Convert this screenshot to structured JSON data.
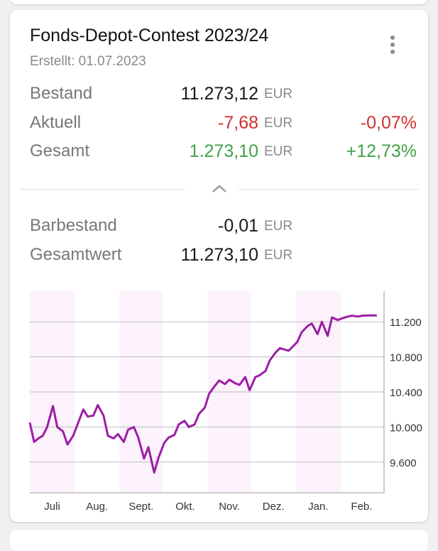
{
  "card": {
    "title": "Fonds-Depot-Contest 2023/24",
    "created": "Erstellt: 01.07.2023",
    "menu_icon": "more-vert-icon",
    "collapse_icon": "chevron-up-icon"
  },
  "summary": {
    "rows": [
      {
        "label": "Bestand",
        "value": "11.273,12",
        "currency": "EUR",
        "percent": ""
      },
      {
        "label": "Aktuell",
        "value": "-7,68",
        "currency": "EUR",
        "percent": "-0,07%"
      },
      {
        "label": "Gesamt",
        "value": "1.273,10",
        "currency": "EUR",
        "percent": "+12,73%"
      }
    ]
  },
  "cash": {
    "rows": [
      {
        "label": "Barbestand",
        "value": "-0,01",
        "currency": "EUR"
      },
      {
        "label": "Gesamtwert",
        "value": "11.273,10",
        "currency": "EUR"
      }
    ]
  },
  "colors": {
    "negative": "#d32f2f",
    "positive": "#43a047",
    "line": "#9c1ea4",
    "band": "#fbf2fb"
  },
  "chart_data": {
    "type": "line",
    "title": "",
    "xlabel": "",
    "ylabel": "",
    "x_ticks": [
      "Juli",
      "Aug.",
      "Sept.",
      "Okt.",
      "Nov.",
      "Dez.",
      "Jan.",
      "Feb."
    ],
    "y_ticks": [
      9600,
      10000,
      10400,
      10800,
      11200
    ],
    "y_tick_labels": [
      "9.600",
      "10.000",
      "10.400",
      "10.800",
      "11.200"
    ],
    "ylim": [
      9250,
      11550
    ],
    "grid": true,
    "y_axis_position": "right",
    "shaded_months": [
      "Juli",
      "Sept.",
      "Nov.",
      "Jan."
    ],
    "series": [
      {
        "x": [
          "2023-07-01",
          "2023-07-04",
          "2023-07-07",
          "2023-07-10",
          "2023-07-13",
          "2023-07-17",
          "2023-07-20",
          "2023-07-24",
          "2023-07-27",
          "2023-07-31",
          "2023-08-03",
          "2023-08-07",
          "2023-08-10",
          "2023-08-14",
          "2023-08-17",
          "2023-08-21",
          "2023-08-24",
          "2023-08-28",
          "2023-08-31",
          "2023-09-04",
          "2023-09-07",
          "2023-09-11",
          "2023-09-14",
          "2023-09-18",
          "2023-09-21",
          "2023-09-25",
          "2023-09-28",
          "2023-10-02",
          "2023-10-05",
          "2023-10-09",
          "2023-10-12",
          "2023-10-16",
          "2023-10-19",
          "2023-10-23",
          "2023-10-26",
          "2023-10-30",
          "2023-11-02",
          "2023-11-06",
          "2023-11-09",
          "2023-11-13",
          "2023-11-16",
          "2023-11-20",
          "2023-11-23",
          "2023-11-27",
          "2023-11-30",
          "2023-12-04",
          "2023-12-07",
          "2023-12-11",
          "2023-12-14",
          "2023-12-18",
          "2023-12-21",
          "2023-12-27",
          "2024-01-02",
          "2024-01-05",
          "2024-01-09",
          "2024-01-12",
          "2024-01-16",
          "2024-01-19",
          "2024-01-23",
          "2024-01-26",
          "2024-01-30",
          "2024-02-02",
          "2024-02-06",
          "2024-02-09",
          "2024-02-13",
          "2024-02-16",
          "2024-02-20",
          "2024-02-23",
          "2024-02-26"
        ],
        "values": [
          10050,
          9830,
          9870,
          9900,
          10000,
          10240,
          10000,
          9950,
          9800,
          9900,
          10030,
          10200,
          10120,
          10130,
          10250,
          10130,
          9900,
          9870,
          9920,
          9830,
          9970,
          10000,
          9880,
          9640,
          9770,
          9480,
          9650,
          9820,
          9880,
          9910,
          10030,
          10070,
          10000,
          10030,
          10150,
          10220,
          10380,
          10470,
          10530,
          10490,
          10540,
          10500,
          10480,
          10570,
          10420,
          10570,
          10590,
          10640,
          10760,
          10850,
          10900,
          10870,
          10970,
          11080,
          11150,
          11180,
          11060,
          11200,
          11040,
          11250,
          11220,
          11240,
          11260,
          11270,
          11260,
          11270,
          11273,
          11273,
          11273
        ]
      }
    ]
  }
}
